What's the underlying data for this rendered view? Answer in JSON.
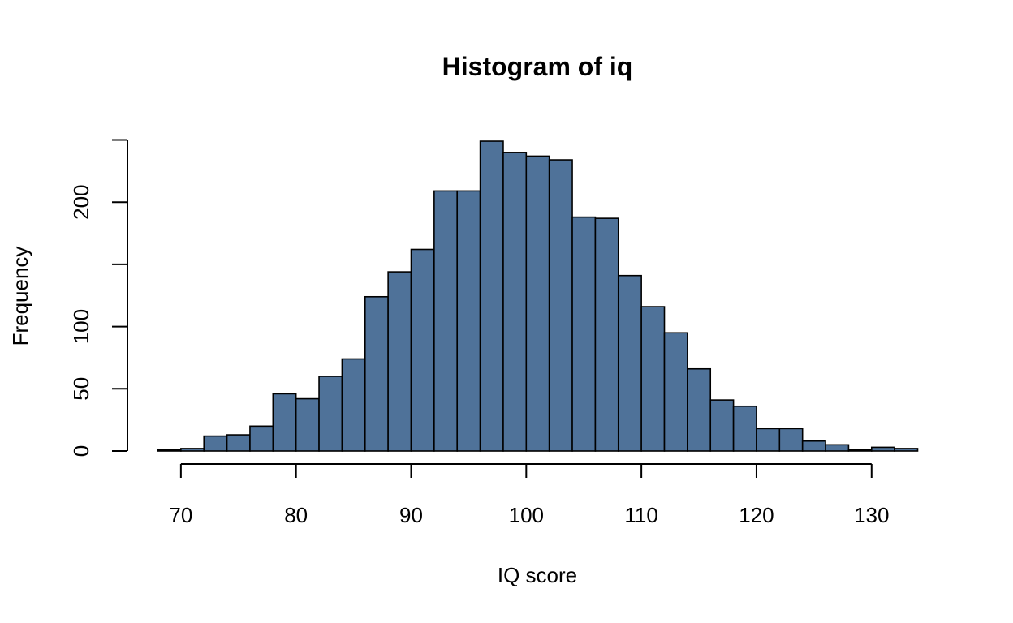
{
  "chart_data": {
    "type": "bar",
    "subtype": "histogram",
    "title": "Histogram of iq",
    "xlabel": "IQ score",
    "ylabel": "Frequency",
    "bins": [
      [
        68,
        70
      ],
      [
        70,
        72
      ],
      [
        72,
        74
      ],
      [
        74,
        76
      ],
      [
        76,
        78
      ],
      [
        78,
        80
      ],
      [
        80,
        82
      ],
      [
        82,
        84
      ],
      [
        84,
        86
      ],
      [
        86,
        88
      ],
      [
        88,
        90
      ],
      [
        90,
        92
      ],
      [
        92,
        94
      ],
      [
        94,
        96
      ],
      [
        96,
        98
      ],
      [
        98,
        100
      ],
      [
        100,
        102
      ],
      [
        102,
        104
      ],
      [
        104,
        106
      ],
      [
        106,
        108
      ],
      [
        108,
        110
      ],
      [
        110,
        112
      ],
      [
        112,
        114
      ],
      [
        114,
        116
      ],
      [
        116,
        118
      ],
      [
        118,
        120
      ],
      [
        120,
        122
      ],
      [
        122,
        124
      ],
      [
        124,
        126
      ],
      [
        126,
        128
      ],
      [
        128,
        130
      ],
      [
        130,
        132
      ],
      [
        132,
        134
      ]
    ],
    "values": [
      1,
      2,
      12,
      13,
      20,
      46,
      42,
      60,
      74,
      124,
      144,
      162,
      209,
      209,
      249,
      240,
      237,
      234,
      188,
      187,
      141,
      116,
      95,
      66,
      41,
      36,
      18,
      18,
      8,
      5,
      1,
      3,
      2
    ],
    "xlim": [
      68,
      134
    ],
    "ylim": [
      0,
      250
    ],
    "x_ticks": [
      70,
      80,
      90,
      100,
      110,
      120,
      130
    ],
    "y_ticks": [
      0,
      50,
      100,
      150,
      200,
      250
    ],
    "y_tick_labels": [
      "0",
      "50",
      "100",
      "",
      "200",
      ""
    ],
    "bar_color": "#4F7299",
    "grid": false,
    "legend": "none"
  }
}
